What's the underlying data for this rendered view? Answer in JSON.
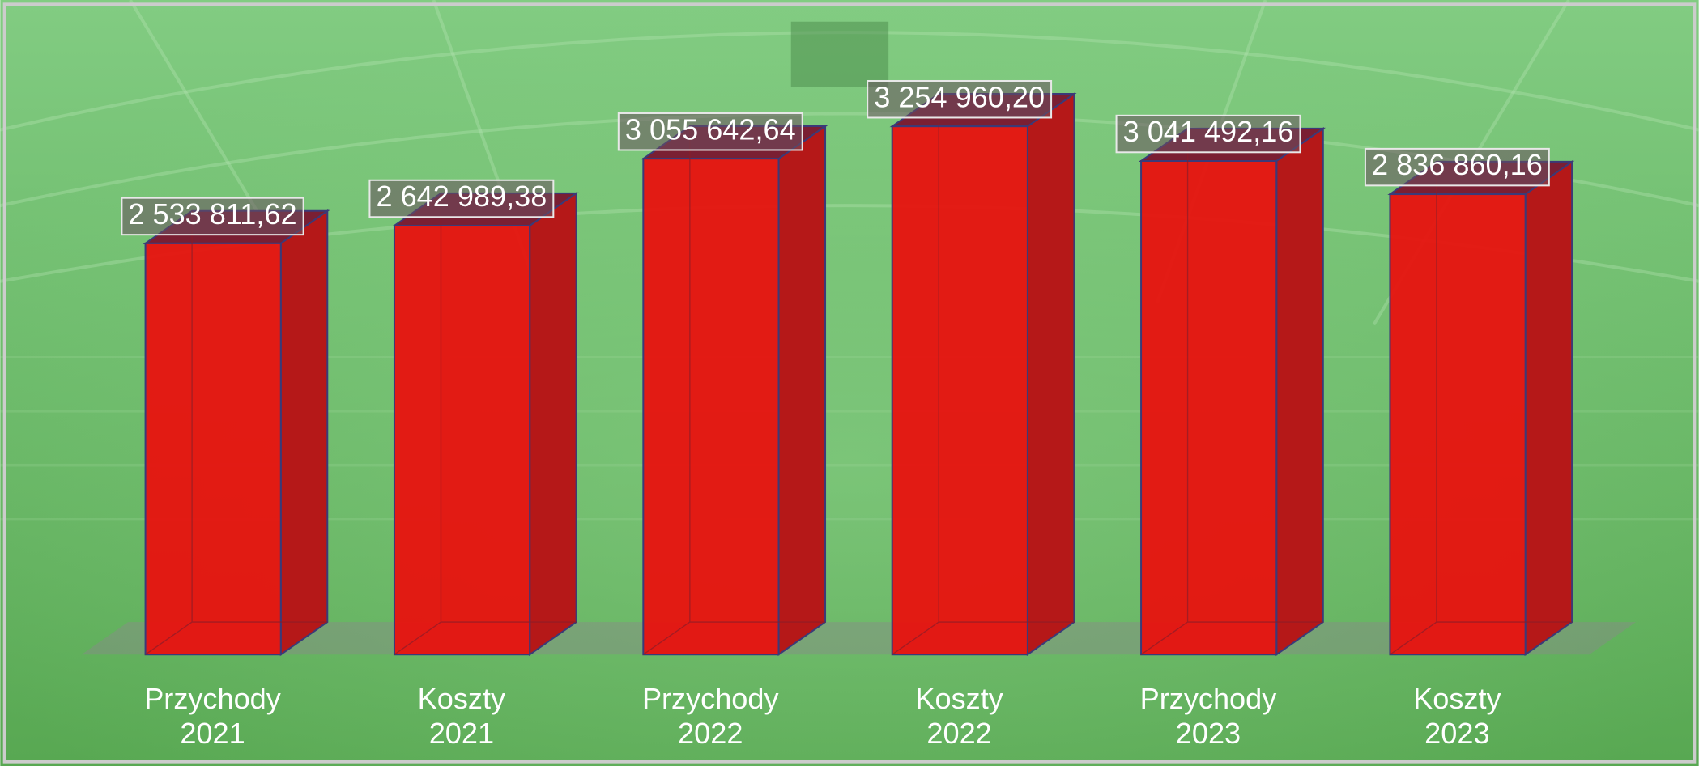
{
  "chart_data": {
    "type": "bar3d",
    "categories": [
      "Przychody 2021",
      "Koszty 2021",
      "Przychody 2022",
      "Koszty 2022",
      "Przychody 2023",
      "Koszty 2023"
    ],
    "values": [
      2533811.62,
      2642989.38,
      3055642.64,
      3254960.2,
      3041492.16,
      2836860.16
    ],
    "value_labels": [
      "2 533 811,62",
      "2 642 989,38",
      "3 055 642,64",
      "3 254 960,20",
      "3 041 492,16",
      "2 836 860,16"
    ],
    "color": "#e8120f",
    "ylim": [
      0,
      4000000
    ]
  }
}
